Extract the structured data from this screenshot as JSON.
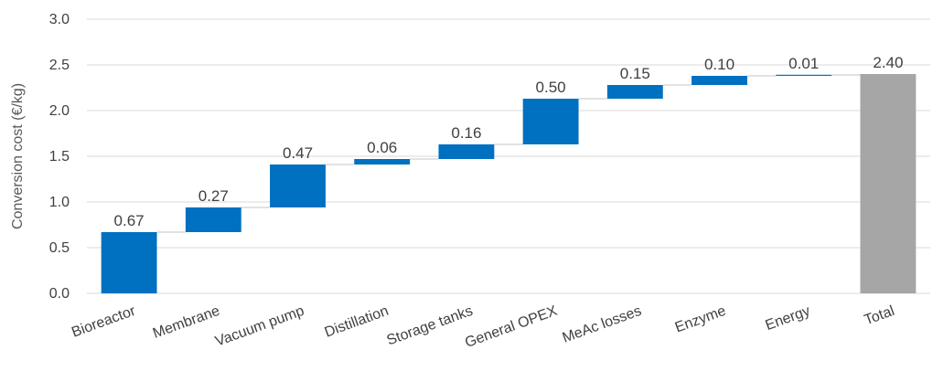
{
  "chart_data": {
    "type": "bar",
    "subtype": "waterfall",
    "title": "",
    "xlabel": "",
    "ylabel": "Conversion cost (€/kg)",
    "ylim": [
      0,
      3.0
    ],
    "yticks": [
      "0.0",
      "0.5",
      "1.0",
      "1.5",
      "2.0",
      "2.5",
      "3.0"
    ],
    "grid": true,
    "categories": [
      "Bioreactor",
      "Membrane",
      "Vacuum pump",
      "Distillation",
      "Storage tanks",
      "General OPEX",
      "MeAc losses",
      "Enzyme",
      "Energy",
      "Total"
    ],
    "values": [
      0.67,
      0.27,
      0.47,
      0.06,
      0.16,
      0.5,
      0.15,
      0.1,
      0.01,
      2.4
    ],
    "labels": [
      "0.67",
      "0.27",
      "0.47",
      "0.06",
      "0.16",
      "0.50",
      "0.15",
      "0.10",
      "0.01",
      "2.40"
    ],
    "total_index": 9,
    "colors": {
      "increment": "#0070C0",
      "total": "#A6A6A6",
      "grid": "#D9D9D9",
      "connector": "#D9D9D9"
    }
  }
}
